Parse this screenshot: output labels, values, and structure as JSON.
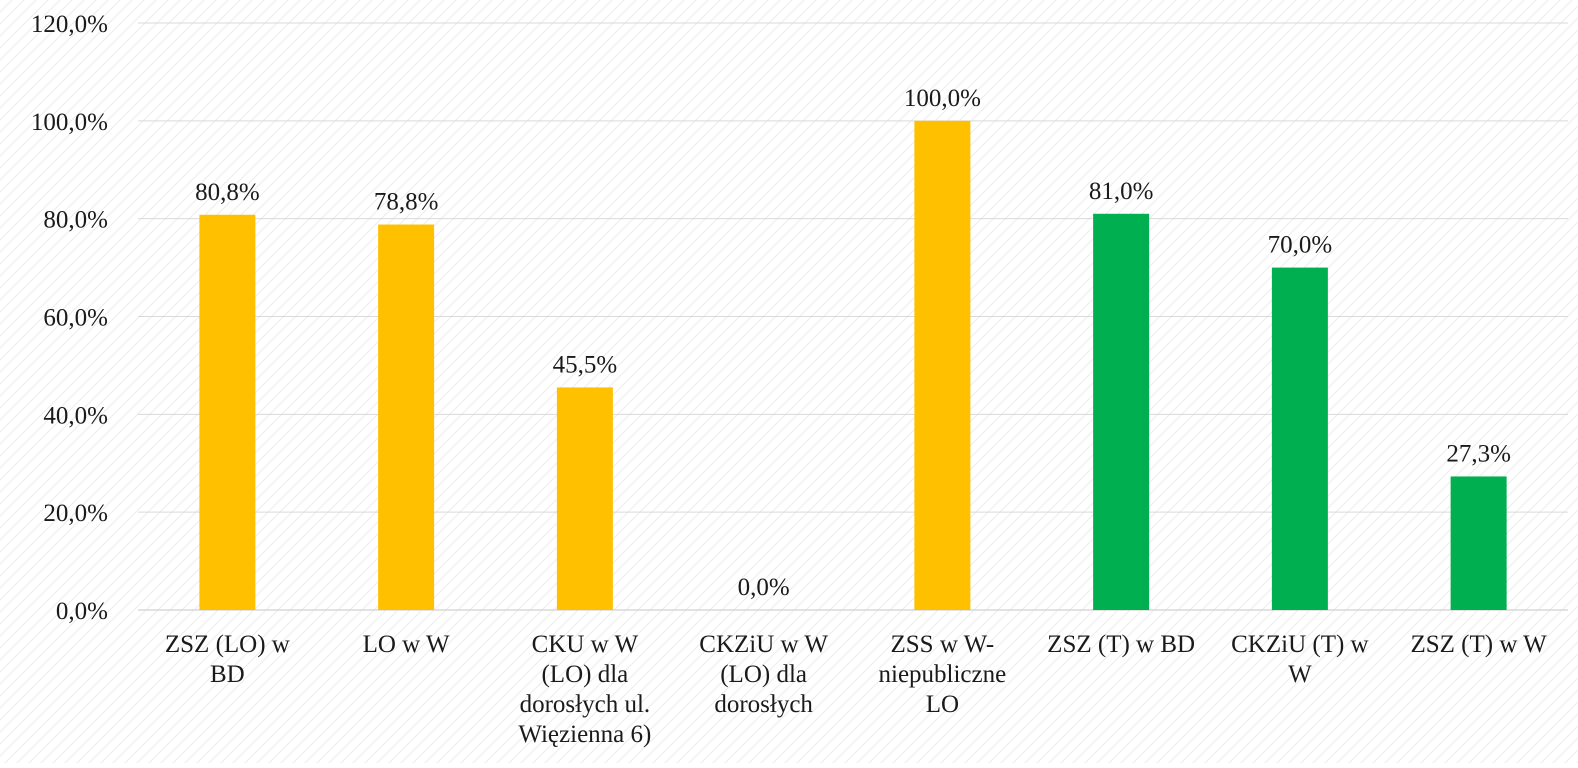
{
  "chart_data": {
    "type": "bar",
    "categories": [
      [
        "ZSZ (LO) w",
        "BD"
      ],
      [
        "LO w W"
      ],
      [
        "CKU w W",
        "(LO) dla",
        "dorosłych ul.",
        "Więzienna 6)"
      ],
      [
        "CKZiU w W",
        "(LO) dla",
        "dorosłych"
      ],
      [
        "ZSS w W-",
        "niepubliczne",
        "LO"
      ],
      [
        "ZSZ (T) w BD"
      ],
      [
        "CKZiU (T) w",
        "W"
      ],
      [
        "ZSZ (T) w W"
      ]
    ],
    "values": [
      80.8,
      78.8,
      45.5,
      0.0,
      100.0,
      81.0,
      70.0,
      27.3
    ],
    "data_labels": [
      "80,8%",
      "78,8%",
      "45,5%",
      "0,0%",
      "100,0%",
      "81,0%",
      "70,0%",
      "27,3%"
    ],
    "bar_colors": [
      "#FFC000",
      "#FFC000",
      "#FFC000",
      "#FFC000",
      "#FFC000",
      "#00B050",
      "#00B050",
      "#00B050"
    ],
    "y_ticks": [
      0,
      20,
      40,
      60,
      80,
      100,
      120
    ],
    "y_tick_labels": [
      "0,0%",
      "20,0%",
      "40,0%",
      "60,0%",
      "80,0%",
      "100,0%",
      "120,0%"
    ],
    "ylim": [
      0,
      120
    ],
    "grid": true,
    "title": "",
    "xlabel": "",
    "ylabel": "",
    "gridline_color": "#d9d9d9",
    "background_pattern_color": "#e6e6e6"
  }
}
